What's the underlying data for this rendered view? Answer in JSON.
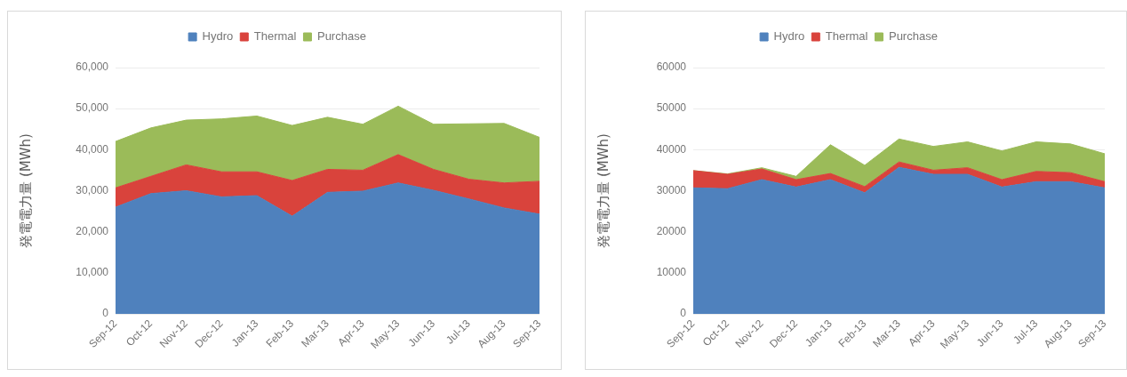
{
  "chart_data": [
    {
      "type": "area",
      "stacked": true,
      "ylabel": "発電電力量 (MWh)",
      "legend": "top",
      "grid": "y",
      "categories": [
        "Sep-12",
        "Oct-12",
        "Nov-12",
        "Dec-12",
        "Jan-13",
        "Feb-13",
        "Mar-13",
        "Apr-13",
        "May-13",
        "Jun-13",
        "Jul-13",
        "Aug-13",
        "Sep-13"
      ],
      "ylim": [
        0,
        60000
      ],
      "yticks": [
        {
          "value": 0,
          "label": "0"
        },
        {
          "value": 10000,
          "label": "10,000"
        },
        {
          "value": 20000,
          "label": "20,000"
        },
        {
          "value": 30000,
          "label": "30,000"
        },
        {
          "value": 40000,
          "label": "40,000"
        },
        {
          "value": 50000,
          "label": "50,000"
        },
        {
          "value": 60000,
          "label": "60,000"
        }
      ],
      "series": [
        {
          "name": "Hydro",
          "color": "#4f81bd",
          "values": [
            26000,
            29300,
            30000,
            28500,
            28800,
            23800,
            29600,
            29900,
            31900,
            30100,
            28000,
            25800,
            24300
          ]
        },
        {
          "name": "Thermal",
          "color": "#d9433c",
          "values": [
            4700,
            4200,
            6300,
            6100,
            5800,
            8700,
            5600,
            5100,
            6900,
            5100,
            4800,
            6100,
            8000
          ]
        },
        {
          "name": "Purchase",
          "color": "#9bbb59",
          "values": [
            11300,
            11800,
            10900,
            12900,
            13600,
            13400,
            12700,
            11200,
            11800,
            11000,
            13500,
            14500,
            10700
          ]
        }
      ]
    },
    {
      "type": "area",
      "stacked": true,
      "ylabel": "発電電力量 (MWh)",
      "legend": "top",
      "grid": "y",
      "categories": [
        "Sep-12",
        "Oct-12",
        "Nov-12",
        "Dec-12",
        "Jan-13",
        "Feb-13",
        "Mar-13",
        "Apr-13",
        "May-13",
        "Jun-13",
        "Jul-13",
        "Aug-13",
        "Sep-13"
      ],
      "ylim": [
        0,
        60000
      ],
      "yticks": [
        0,
        10000,
        20000,
        30000,
        40000,
        50000,
        60000
      ],
      "series": [
        {
          "name": "Hydro",
          "color": "#4f81bd",
          "values": [
            30700,
            30500,
            32700,
            30900,
            32700,
            29500,
            35700,
            34000,
            34000,
            30900,
            32200,
            32200,
            30700
          ]
        },
        {
          "name": "Thermal",
          "color": "#d9433c",
          "values": [
            4200,
            3500,
            2600,
            1800,
            1500,
            1500,
            1300,
            1000,
            1600,
            1800,
            2500,
            2200,
            1500
          ]
        },
        {
          "name": "Purchase",
          "color": "#9bbb59",
          "values": [
            0,
            100,
            300,
            800,
            7000,
            5200,
            5600,
            5800,
            6300,
            7000,
            7200,
            7000,
            6800
          ]
        }
      ]
    }
  ]
}
